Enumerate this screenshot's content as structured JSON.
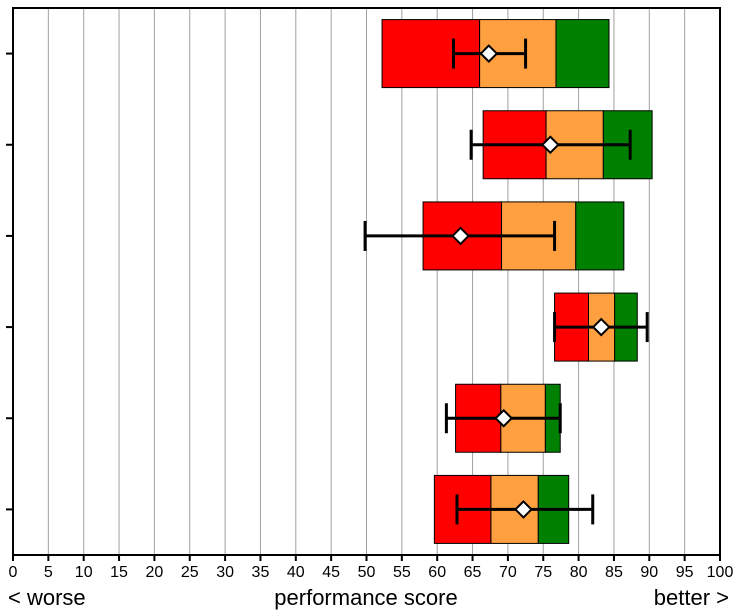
{
  "chart_data": {
    "type": "bar",
    "orientation": "horizontal",
    "xlabel": "performance score",
    "xlabel_left": "< worse",
    "xlabel_right": "better >",
    "xlim": [
      0,
      100
    ],
    "xticks": [
      0,
      5,
      10,
      15,
      20,
      25,
      30,
      35,
      40,
      45,
      50,
      55,
      60,
      65,
      70,
      75,
      80,
      85,
      90,
      95,
      100
    ],
    "vertical_grid": true,
    "rows": [
      {
        "range_start": 52.2,
        "red_end": 66.0,
        "orange_end": 76.8,
        "green_end": 84.3,
        "marker": 67.3,
        "error_low": 62.3,
        "error_high": 72.5
      },
      {
        "range_start": 66.5,
        "red_end": 75.4,
        "orange_end": 83.5,
        "green_end": 90.4,
        "marker": 76.0,
        "error_low": 64.8,
        "error_high": 87.3
      },
      {
        "range_start": 58.0,
        "red_end": 69.1,
        "orange_end": 79.6,
        "green_end": 86.4,
        "marker": 63.3,
        "error_low": 49.8,
        "error_high": 76.6
      },
      {
        "range_start": 76.6,
        "red_end": 81.4,
        "orange_end": 85.1,
        "green_end": 88.3,
        "marker": 83.2,
        "error_low": 76.6,
        "error_high": 89.7
      },
      {
        "range_start": 62.6,
        "red_end": 69.0,
        "orange_end": 75.3,
        "green_end": 77.4,
        "marker": 69.4,
        "error_low": 61.3,
        "error_high": 77.4
      },
      {
        "range_start": 59.6,
        "red_end": 67.6,
        "orange_end": 74.3,
        "green_end": 78.6,
        "marker": 72.2,
        "error_low": 62.8,
        "error_high": 82.0
      }
    ],
    "colors": {
      "red": "#ff0000",
      "orange": "#ffa040",
      "green": "#008000",
      "error_bar": "#000000",
      "marker_fill": "#ffffff",
      "grid": "#a0a0a0",
      "frame": "#000000"
    }
  }
}
